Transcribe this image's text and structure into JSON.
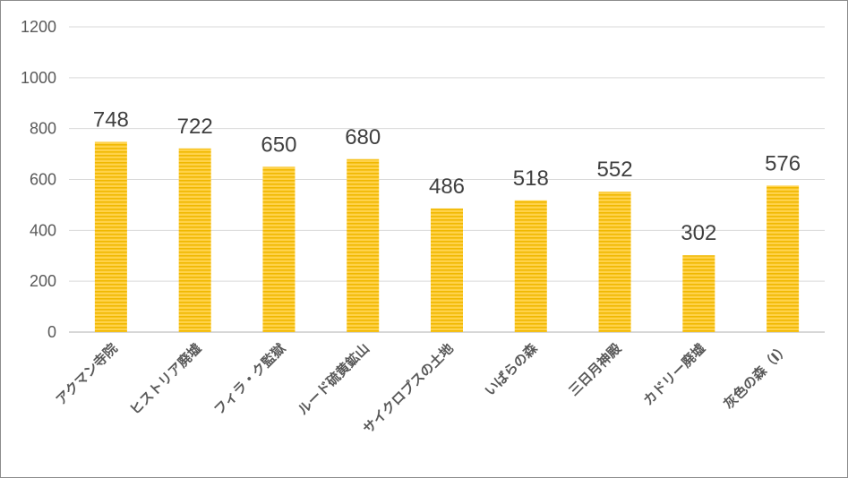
{
  "chart_data": {
    "type": "bar",
    "categories": [
      "アクマン寺院",
      "ヒストリア廃墟",
      "フィラ・ク監獄",
      "ルード硫黄鉱山",
      "サイクロプスの土地",
      "いばらの森",
      "三日月神殿",
      "カドリー廃墟",
      "灰色の森（Ⅰ）"
    ],
    "values": [
      748,
      722,
      650,
      680,
      486,
      518,
      552,
      302,
      576
    ],
    "ylim": [
      0,
      1200
    ],
    "yticks": [
      0,
      200,
      400,
      600,
      800,
      1000,
      1200
    ],
    "grid": true,
    "legend": "none",
    "data_labels": true,
    "colors": {
      "bar": "#FFD24A",
      "bar_stripe": "#F0B800",
      "grid": "#D9D9D9",
      "axis": "#BFBFBF"
    }
  }
}
